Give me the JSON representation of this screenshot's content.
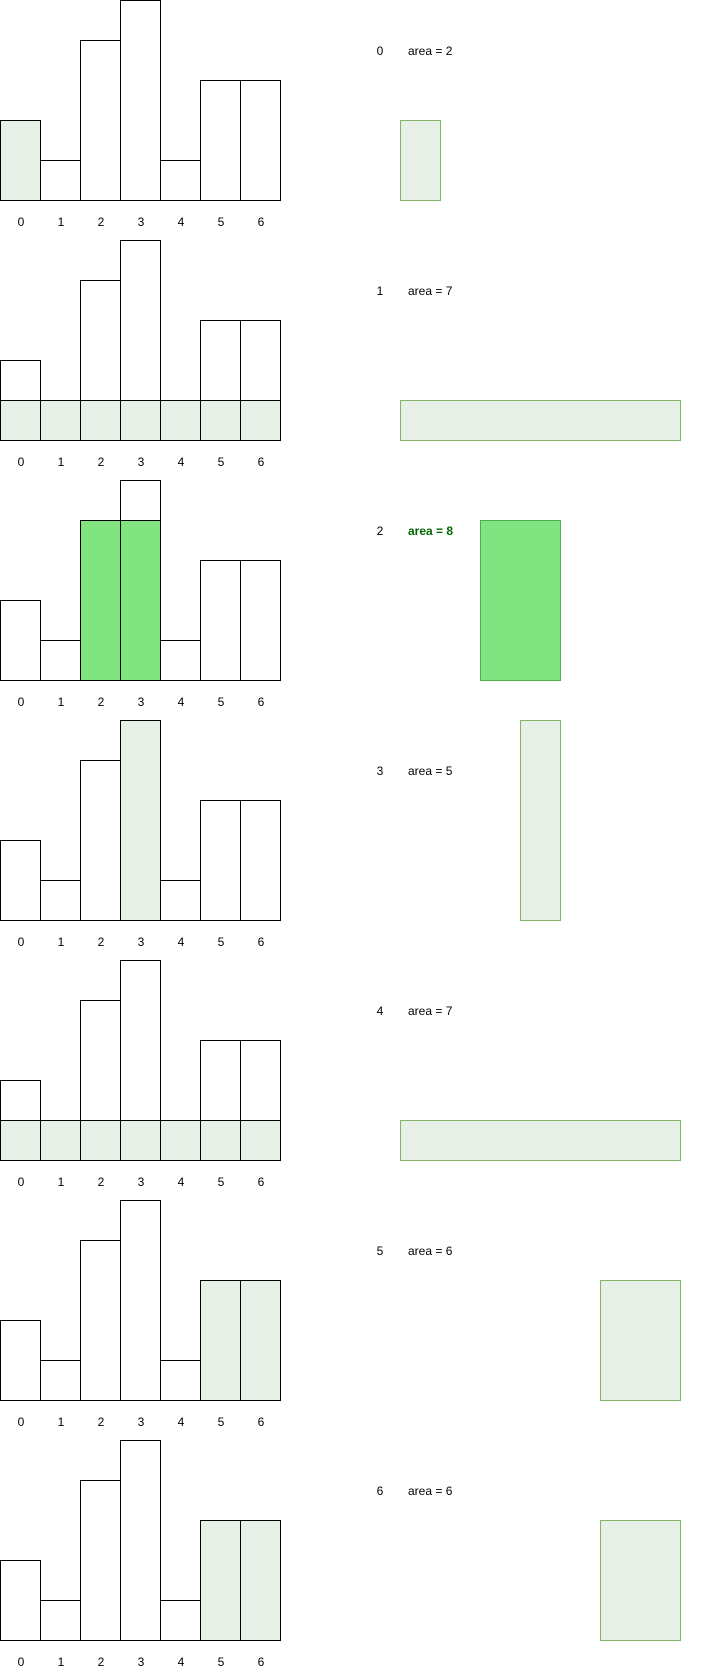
{
  "heights": [
    2,
    1,
    4,
    5,
    1,
    3,
    3
  ],
  "index_labels": [
    "0",
    "1",
    "2",
    "3",
    "4",
    "5",
    "6"
  ],
  "colors": {
    "bar_stroke": "#000000",
    "bar_fill": "#ffffff",
    "highlight_fill": "#e6f0e6",
    "highlight_stroke": "#82b366",
    "max_fill": "#80e480",
    "max_stroke": "#4caf50",
    "max_text": "#006600"
  },
  "steps": [
    {
      "index": "0",
      "area_label": "area = 2",
      "start": 0,
      "end": 0,
      "height": 2,
      "is_max": false
    },
    {
      "index": "1",
      "area_label": "area = 7",
      "start": 0,
      "end": 6,
      "height": 1,
      "is_max": false
    },
    {
      "index": "2",
      "area_label": "area = 8",
      "start": 2,
      "end": 3,
      "height": 4,
      "is_max": true
    },
    {
      "index": "3",
      "area_label": "area = 5",
      "start": 3,
      "end": 3,
      "height": 5,
      "is_max": false
    },
    {
      "index": "4",
      "area_label": "area = 7",
      "start": 0,
      "end": 6,
      "height": 1,
      "is_max": false
    },
    {
      "index": "5",
      "area_label": "area = 6",
      "start": 5,
      "end": 6,
      "height": 3,
      "is_max": false
    },
    {
      "index": "6",
      "area_label": "area = 6",
      "start": 5,
      "end": 6,
      "height": 3,
      "is_max": false
    }
  ]
}
